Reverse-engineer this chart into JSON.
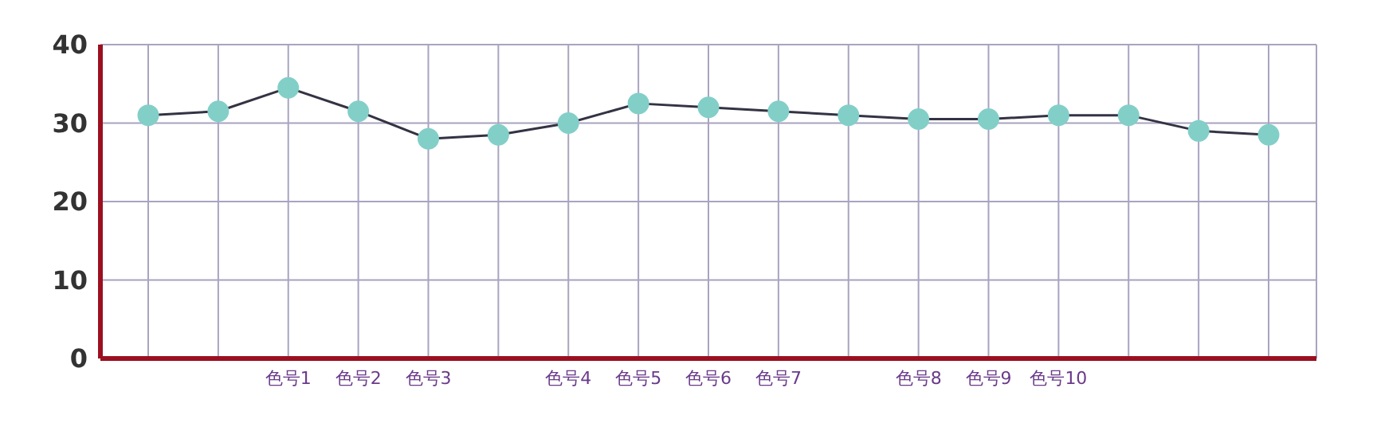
{
  "chart_data": {
    "type": "line",
    "categories": [
      null,
      null,
      "色号1",
      "色号2",
      "色号3",
      null,
      "色号4",
      "色号5",
      "色号6",
      "色号7",
      null,
      "色号8",
      "色号9",
      "色号10",
      null,
      null,
      null
    ],
    "series": [
      {
        "color": "#333344",
        "values": [
          31,
          31.5,
          34.5,
          31.5,
          28,
          28.5,
          30,
          32.5,
          32,
          31.5,
          31,
          30.5,
          30.5,
          31,
          31,
          29,
          28.5
        ]
      }
    ],
    "ylim": [
      0,
      40
    ],
    "yticks": [
      0,
      10,
      20,
      30,
      40
    ],
    "grid": true,
    "marker": "circle",
    "line_style": "solid"
  }
}
